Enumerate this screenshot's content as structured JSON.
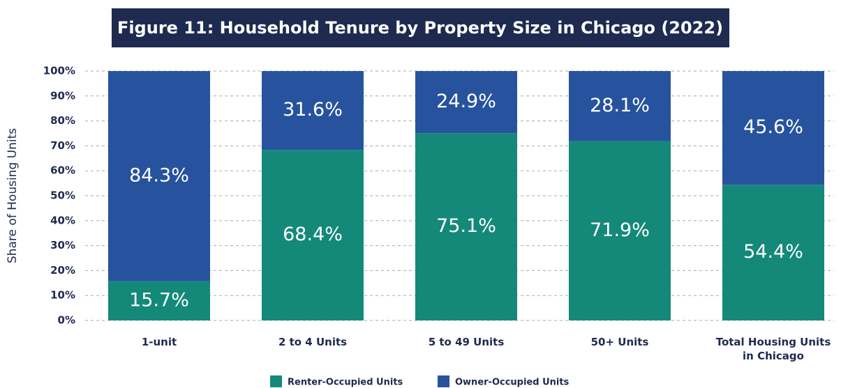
{
  "chart_data": {
    "type": "stacked_bar",
    "title": "Figure 11: Household Tenure by Property Size in Chicago (2022)",
    "y_label": "Share of Housing Units",
    "categories": [
      "1-unit",
      "2 to 4 Units",
      "5 to 49 Units",
      "50+ Units",
      "Total Housing Units in Chicago"
    ],
    "series": [
      {
        "name": "Renter-Occupied Units",
        "color": "#14897a",
        "values": [
          15.7,
          68.4,
          75.1,
          71.9,
          54.4
        ],
        "value_labels": [
          "15.7%",
          "68.4%",
          "75.1%",
          "71.9%",
          "54.4%"
        ]
      },
      {
        "name": "Owner-Occupied Units",
        "color": "#27539e",
        "values": [
          84.3,
          31.6,
          24.9,
          28.1,
          45.6
        ],
        "value_labels": [
          "84.3%",
          "31.6%",
          "24.9%",
          "28.1%",
          "45.6%"
        ]
      }
    ],
    "ylim": [
      0,
      100
    ],
    "yticks": [
      {
        "value": 0,
        "label": "0%"
      },
      {
        "value": 10,
        "label": "10%"
      },
      {
        "value": 20,
        "label": "20%"
      },
      {
        "value": 30,
        "label": "30%"
      },
      {
        "value": 40,
        "label": "40%"
      },
      {
        "value": 50,
        "label": "50%"
      },
      {
        "value": 60,
        "label": "60%"
      },
      {
        "value": 70,
        "label": "70%"
      },
      {
        "value": 80,
        "label": "80%"
      },
      {
        "value": 90,
        "label": "90%"
      },
      {
        "value": 100,
        "label": "100%"
      }
    ],
    "grid": true,
    "legend": "bottom"
  }
}
